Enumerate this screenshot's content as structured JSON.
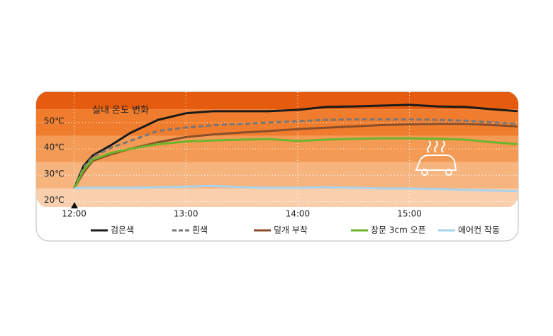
{
  "chart_data": {
    "type": "line",
    "title": "실내 온도 변화",
    "x": [
      0,
      5,
      10,
      20,
      30,
      45,
      60,
      75,
      90,
      105,
      120,
      135,
      150,
      165,
      180,
      195,
      210,
      225,
      238
    ],
    "xlim": [
      -20,
      238
    ],
    "xticks": [
      {
        "value": 0,
        "label": "12:00"
      },
      {
        "value": 60,
        "label": "13:00"
      },
      {
        "value": 120,
        "label": "14:00"
      },
      {
        "value": 180,
        "label": "15:00"
      }
    ],
    "ylim": [
      18,
      61.5
    ],
    "yticks": [
      {
        "value": 20,
        "label": "20℃"
      },
      {
        "value": 30,
        "label": "30℃"
      },
      {
        "value": 40,
        "label": "40℃"
      },
      {
        "value": 50,
        "label": "50℃"
      }
    ],
    "grid": true,
    "series": [
      {
        "name": "검은색",
        "color": "#1a1a1a",
        "dash": false,
        "values": [
          25,
          33.5,
          37.5,
          41.5,
          46,
          51,
          53.5,
          54.3,
          54.3,
          54.3,
          54.8,
          55.9,
          56.1,
          56.4,
          56.7,
          56.1,
          55.9,
          55,
          54.3
        ]
      },
      {
        "name": "흰색",
        "color": "#777777",
        "dash": true,
        "values": [
          25,
          33,
          37,
          40.5,
          43,
          46.8,
          48.1,
          49,
          49.5,
          50,
          50.5,
          51,
          51.2,
          51.2,
          51.2,
          51,
          50.7,
          50,
          49.5
        ]
      },
      {
        "name": "덮개 부착",
        "color": "#8a4f2a",
        "dash": false,
        "values": [
          25,
          31,
          35.5,
          38,
          40,
          42.5,
          44.5,
          45.5,
          46.2,
          46.8,
          47.5,
          48,
          48.5,
          49,
          49.3,
          49.5,
          49.5,
          49,
          48.5
        ]
      },
      {
        "name": "창문 3cm 오픈",
        "color": "#6cb52d",
        "dash": false,
        "values": [
          25,
          32,
          36,
          38.5,
          40,
          41.8,
          42.8,
          43.2,
          43.5,
          43.7,
          43,
          43.5,
          43.8,
          44,
          44,
          43.8,
          43.5,
          42.5,
          41.8
        ]
      },
      {
        "name": "에어컨 작동",
        "color": "#a9d3ec",
        "dash": false,
        "values": [
          25,
          25.3,
          25.3,
          25.3,
          25.3,
          25.5,
          25.7,
          26,
          25.5,
          25.3,
          25.3,
          25.5,
          25.3,
          25,
          25,
          24.8,
          24.5,
          24.2,
          24
        ]
      }
    ]
  }
}
